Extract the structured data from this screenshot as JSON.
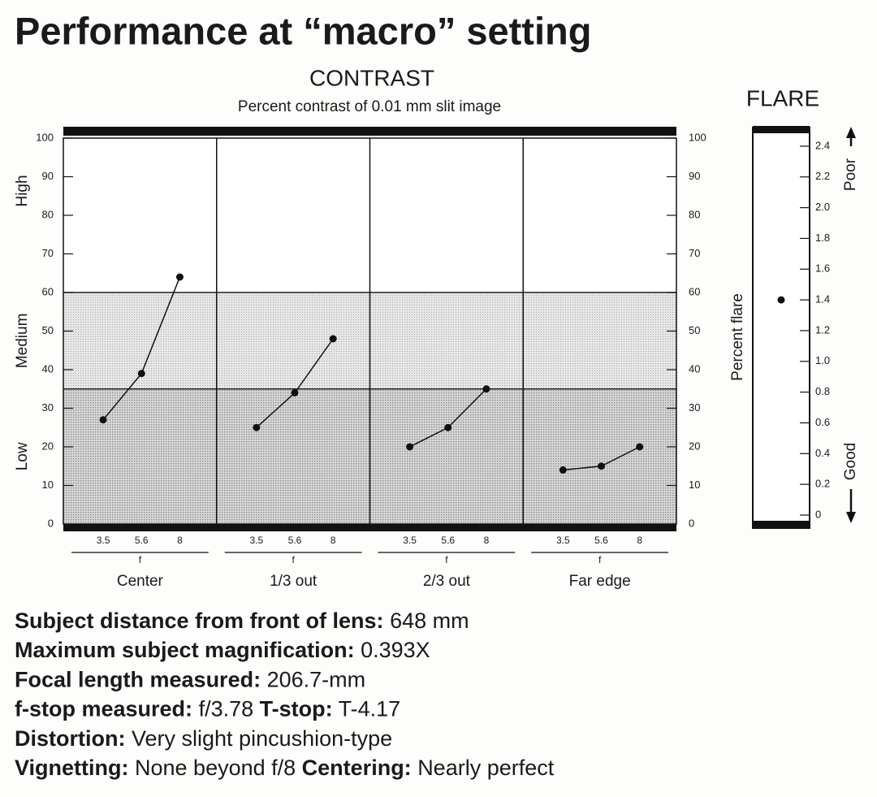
{
  "title": "Performance at “macro” setting",
  "chart_data": [
    {
      "type": "line",
      "title": "CONTRAST",
      "subtitle": "Percent contrast of 0.01 mm slit image",
      "ylim": [
        0,
        100
      ],
      "yticks": [
        0,
        10,
        20,
        30,
        40,
        50,
        60,
        70,
        80,
        90,
        100
      ],
      "bands": [
        {
          "label": "Low",
          "from": 0,
          "to": 35
        },
        {
          "label": "Medium",
          "from": 35,
          "to": 60
        },
        {
          "label": "High",
          "from": 60,
          "to": 100
        }
      ],
      "xlabel": "f",
      "color": "#111111",
      "panels": [
        {
          "name": "Center",
          "categories": [
            "3.5",
            "5.6",
            "8"
          ],
          "values": [
            27,
            39,
            64
          ]
        },
        {
          "name": "1/3 out",
          "categories": [
            "3.5",
            "5.6",
            "8"
          ],
          "values": [
            25,
            34,
            48
          ]
        },
        {
          "name": "2/3 out",
          "categories": [
            "3.5",
            "5.6",
            "8"
          ],
          "values": [
            20,
            25,
            35
          ]
        },
        {
          "name": "Far edge",
          "categories": [
            "3.5",
            "5.6",
            "8"
          ],
          "values": [
            14,
            15,
            20
          ]
        }
      ]
    },
    {
      "type": "scatter",
      "title": "FLARE",
      "ylabel": "Percent flare",
      "ylim": [
        0,
        2.5
      ],
      "yticks": [
        0,
        0.2,
        0.4,
        0.6,
        0.8,
        {
          "value": 1,
          "label": "1.0"
        },
        1.2,
        1.4,
        1.6,
        1.8,
        {
          "value": 2,
          "label": "2.0"
        },
        2.2,
        2.4
      ],
      "values": [
        1.4
      ],
      "color": "#111111",
      "annotations": [
        "Poor",
        "Good"
      ]
    }
  ],
  "specs": [
    [
      {
        "label": "Subject distance from front of lens:",
        "value": "648 mm"
      }
    ],
    [
      {
        "label": "Maximum subject magnification:",
        "value": "0.393X"
      }
    ],
    [
      {
        "label": "Focal length measured:",
        "value": "206.7-mm"
      }
    ],
    [
      {
        "label": "f-stop measured:",
        "value": "f/3.78"
      },
      {
        "label": "T-stop:",
        "value": "T-4.17"
      }
    ],
    [
      {
        "label": "Distortion:",
        "value": "Very slight pincushion-type"
      }
    ],
    [
      {
        "label": "Vignetting:",
        "value": "None beyond f/8"
      },
      {
        "label": "Centering:",
        "value": "Nearly perfect"
      }
    ]
  ]
}
